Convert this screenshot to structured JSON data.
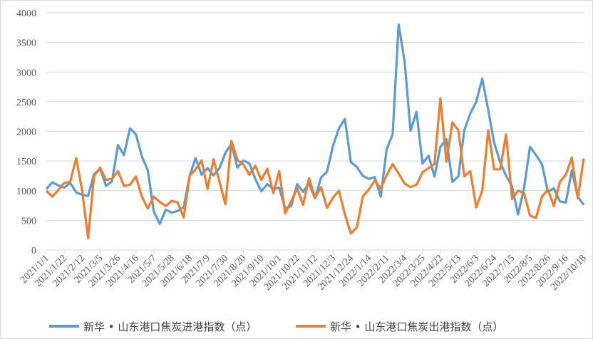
{
  "chart_data": {
    "type": "line",
    "title": "",
    "xlabel": "",
    "ylabel": "",
    "ylim": [
      0,
      4000
    ],
    "yticks": [
      0,
      500,
      1000,
      1500,
      2000,
      2500,
      3000,
      3500,
      4000
    ],
    "grid": "horizontal",
    "legend_position": "bottom",
    "x_tick_labels": [
      "2021/1/1",
      "2021/1/22",
      "2021/2/12",
      "2021/3/5",
      "2021/3/26",
      "2021/4/16",
      "2021/5/7",
      "2021/5/28",
      "2021/6/18",
      "2021/7/9",
      "2021/7/30",
      "2021/8/20",
      "2021/9/10",
      "2021/10/1",
      "2021/10/22",
      "2021/11/12",
      "2021/12/3",
      "2021/12/24",
      "2022/1/14",
      "2022/2/11",
      "2022/3/4",
      "2022/3/25",
      "2022/4/22",
      "2022/5/13",
      "2022/6/3",
      "2022/6/24",
      "2022/7/15",
      "2022/8/5",
      "2022/8/26",
      "2022/9/16",
      "2022/10/18"
    ],
    "series": [
      {
        "name": "新华 • 山东港口焦炭进港指数（点）",
        "color": "#5B9BD5",
        "values": [
          1030,
          1140,
          1090,
          1050,
          1130,
          970,
          930,
          910,
          1280,
          1370,
          1080,
          1160,
          1770,
          1600,
          2050,
          1950,
          1580,
          1340,
          650,
          440,
          680,
          630,
          660,
          720,
          1250,
          1550,
          1270,
          1380,
          1260,
          1380,
          1640,
          1790,
          1390,
          1510,
          1460,
          1200,
          990,
          1110,
          1030,
          1050,
          700,
          740,
          1110,
          980,
          1120,
          870,
          1220,
          1320,
          1750,
          2050,
          2210,
          1480,
          1400,
          1250,
          1200,
          1230,
          900,
          1700,
          1950,
          3800,
          3180,
          2010,
          2330,
          1460,
          1590,
          1240,
          1740,
          1870,
          1150,
          1240,
          2020,
          2300,
          2500,
          2890,
          2360,
          1810,
          1480,
          1250,
          1070,
          600,
          1040,
          1740,
          1600,
          1450,
          980,
          1040,
          820,
          800,
          1340,
          900,
          760
        ]
      },
      {
        "name": "新华 • 山东港口焦炭出港指数（点）",
        "color": "#ED7D31",
        "values": [
          1000,
          900,
          1010,
          1130,
          1150,
          1550,
          1000,
          200,
          1250,
          1390,
          1180,
          1200,
          1330,
          1080,
          1100,
          1240,
          900,
          700,
          900,
          810,
          740,
          830,
          800,
          550,
          1250,
          1360,
          1510,
          1030,
          1530,
          1150,
          770,
          1840,
          1520,
          1440,
          1270,
          1420,
          1180,
          1370,
          960,
          1330,
          620,
          820,
          1040,
          760,
          1210,
          880,
          1060,
          710,
          880,
          1000,
          600,
          280,
          380,
          900,
          1020,
          1170,
          1040,
          1260,
          1450,
          1290,
          1120,
          1060,
          1100,
          1310,
          1380,
          1450,
          2560,
          1490,
          2150,
          2020,
          1240,
          1330,
          720,
          1000,
          2020,
          1360,
          1360,
          1950,
          860,
          1000,
          960,
          580,
          540,
          900,
          1020,
          740,
          1150,
          1270,
          1560,
          870,
          1540
        ]
      }
    ]
  }
}
